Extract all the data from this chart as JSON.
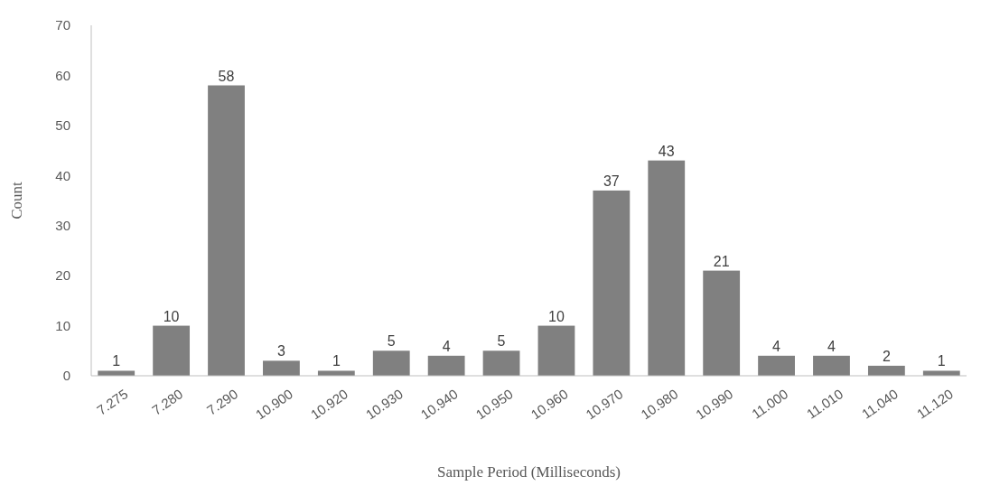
{
  "chart_data": {
    "type": "bar",
    "xlabel": "Sample Period (Milliseconds)",
    "ylabel": "Count",
    "categories": [
      "7.275",
      "7.280",
      "7.290",
      "10.900",
      "10.920",
      "10.930",
      "10.940",
      "10.950",
      "10.960",
      "10.970",
      "10.980",
      "10.990",
      "11.000",
      "11.010",
      "11.040",
      "11.120"
    ],
    "values": [
      1,
      10,
      58,
      3,
      1,
      5,
      4,
      5,
      10,
      37,
      43,
      21,
      4,
      4,
      2,
      1
    ],
    "color": "#808080",
    "ylim": [
      0,
      70
    ],
    "yticks": [
      0,
      10,
      20,
      30,
      40,
      50,
      60,
      70
    ],
    "data_labels": true,
    "grid": false
  }
}
